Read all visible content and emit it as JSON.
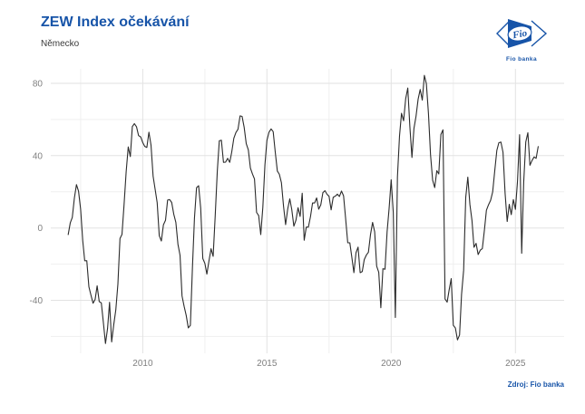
{
  "header": {
    "title": "ZEW Index očekávání",
    "subtitle": "Německo"
  },
  "logo": {
    "name": "Fio banka logo",
    "text": "Fio",
    "caption": "Fio banka"
  },
  "source": {
    "label": "Zdroj: Fio banka"
  },
  "theme": {
    "accent_blue": "#1754a8",
    "axis_text_color": "#7f7f7f",
    "grid_major_color": "#e2e2e2",
    "grid_minor_color": "#efefef",
    "line_color": "#2b2b2b",
    "background": "#ffffff"
  },
  "chart_data": {
    "type": "line",
    "title": "ZEW Index očekávání",
    "subtitle": "Německo",
    "grid": "on",
    "legend": "none",
    "frequency": "monthly",
    "x_start_year": 2007,
    "x_start_month": 1,
    "xlim": [
      2006.3,
      2026.96
    ],
    "ylim": [
      -69.3,
      88
    ],
    "x_major_ticks": [
      2010,
      2015,
      2020,
      2025
    ],
    "x_tick_labels": [
      "2010",
      "2015",
      "2020",
      "2025"
    ],
    "x_minor_gridlines": [
      2007.5,
      2012.5,
      2017.5,
      2022.5
    ],
    "y_gridlines": [
      -60,
      -40,
      -20,
      0,
      20,
      40,
      60,
      80
    ],
    "y_labeled_ticks": [
      -40,
      0,
      40,
      80
    ],
    "line_color": "#2b2b2b",
    "series": [
      {
        "name": "ZEW Index očekávání (Německo)",
        "values": [
          -3.6,
          2.9,
          5.8,
          16.5,
          24.0,
          20.3,
          10.4,
          -6.9,
          -18.1,
          -18.1,
          -32.5,
          -37.2,
          -41.6,
          -39.5,
          -32.0,
          -40.7,
          -41.4,
          -52.4,
          -63.9,
          -55.5,
          -41.1,
          -63.0,
          -53.5,
          -45.2,
          -31.0,
          -5.8,
          -3.5,
          13.0,
          31.1,
          44.8,
          39.5,
          56.1,
          57.7,
          56.0,
          51.1,
          50.4,
          47.2,
          45.1,
          44.5,
          53.0,
          45.8,
          28.7,
          21.2,
          14.0,
          -4.3,
          -7.2,
          1.8,
          4.3,
          15.4,
          15.7,
          14.1,
          7.6,
          3.1,
          -9.0,
          -15.1,
          -37.6,
          -43.3,
          -48.3,
          -55.2,
          -53.8,
          -21.6,
          5.4,
          22.3,
          23.4,
          10.8,
          -16.9,
          -19.6,
          -25.5,
          -18.2,
          -11.5,
          -15.7,
          6.9,
          31.5,
          48.2,
          48.5,
          36.3,
          36.4,
          38.5,
          36.3,
          42.0,
          49.6,
          52.8,
          54.6,
          62.0,
          61.7,
          55.7,
          46.6,
          43.2,
          33.1,
          29.8,
          27.1,
          8.6,
          6.9,
          -3.6,
          11.5,
          34.9,
          48.4,
          53.0,
          54.8,
          53.3,
          41.9,
          31.5,
          29.7,
          25.0,
          12.1,
          1.9,
          10.4,
          16.1,
          10.2,
          1.0,
          4.3,
          11.2,
          6.4,
          19.2,
          -6.8,
          0.5,
          0.5,
          6.2,
          13.8,
          13.8,
          16.6,
          10.4,
          12.8,
          19.5,
          20.6,
          18.6,
          17.5,
          10.0,
          17.0,
          17.6,
          18.7,
          17.4,
          20.4,
          17.8,
          5.1,
          -8.2,
          -8.2,
          -16.1,
          -24.7,
          -13.7,
          -10.6,
          -24.7,
          -24.1,
          -17.5,
          -15.0,
          -13.4,
          -3.6,
          3.1,
          -2.1,
          -21.1,
          -24.5,
          -44.1,
          -22.5,
          -22.8,
          -2.1,
          10.7,
          26.7,
          8.7,
          -49.5,
          28.2,
          51.0,
          63.4,
          59.3,
          71.5,
          77.4,
          56.1,
          39.0,
          55.0,
          61.8,
          71.2,
          76.6,
          70.7,
          84.4,
          79.8,
          63.3,
          40.4,
          26.5,
          22.3,
          31.7,
          29.9,
          51.7,
          54.3,
          -39.3,
          -41.0,
          -34.3,
          -28.0,
          -53.8,
          -55.3,
          -61.9,
          -59.2,
          -36.7,
          -23.3,
          16.9,
          28.1,
          13.0,
          4.1,
          -10.7,
          -8.5,
          -14.7,
          -12.3,
          -11.4,
          -1.1,
          9.8,
          12.8,
          15.2,
          19.9,
          31.7,
          42.9,
          47.1,
          47.5,
          41.8,
          19.2,
          3.6,
          13.1,
          7.4,
          15.7,
          10.3,
          26.0,
          51.6,
          -14.0,
          25.2,
          47.5,
          52.7,
          34.7,
          37.3,
          39.3,
          38.5,
          45.0
        ]
      }
    ]
  }
}
